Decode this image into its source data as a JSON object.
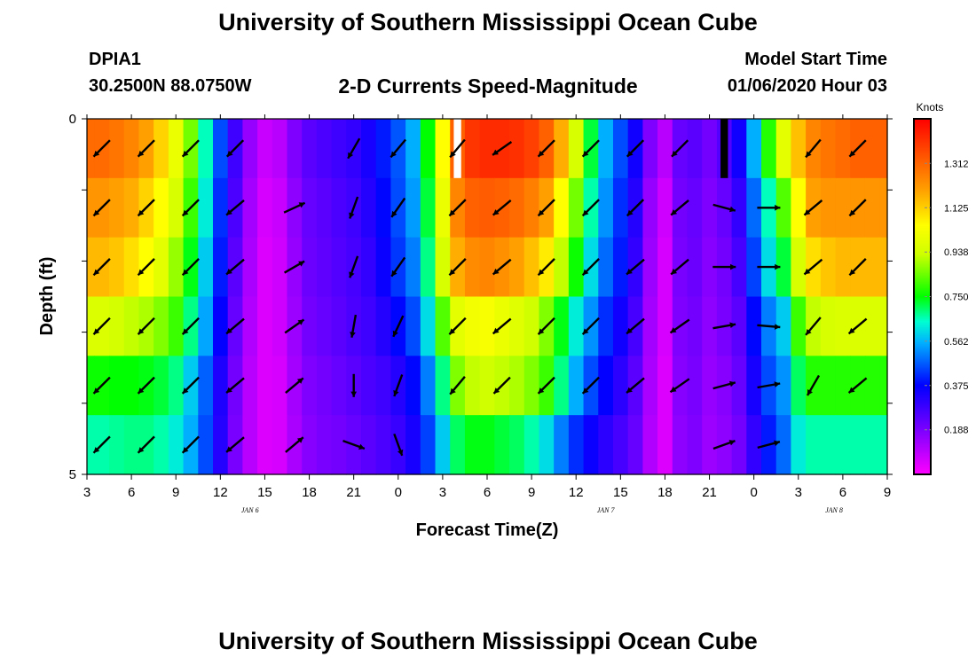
{
  "header": {
    "title_top": "University of Southern Mississippi Ocean Cube",
    "title_bottom": "University of Southern Mississippi Ocean Cube",
    "station": "DPIA1",
    "coords": "30.2500N 88.0750W",
    "subtitle": "2-D Currents Speed-Magnitude",
    "model_start_label": "Model Start Time",
    "model_start_value": "01/06/2020 Hour 03"
  },
  "chart_data": {
    "type": "heatmap",
    "xlabel": "Forecast Time(Z)",
    "ylabel": "Depth (ft)",
    "x_ticks": [
      "3",
      "6",
      "9",
      "12",
      "15",
      "18",
      "21",
      "0",
      "3",
      "6",
      "9",
      "12",
      "15",
      "18",
      "21",
      "0",
      "3",
      "6",
      "9"
    ],
    "x_range_hours": [
      3,
      57
    ],
    "y_ticks": [
      "0",
      "5"
    ],
    "y_range": [
      0,
      5
    ],
    "date_labels": [
      {
        "text": "JAN 6",
        "hour": 14
      },
      {
        "text": "JAN 7",
        "hour": 38
      },
      {
        "text": "JAN 8",
        "hour": 62
      }
    ],
    "colorbar": {
      "unit": "Knots",
      "min": 0.0,
      "max": 1.5,
      "tick_labels": [
        "1.312",
        "1.125",
        "0.938",
        "0.750",
        "0.562",
        "0.375",
        "0.188"
      ],
      "tick_values": [
        1.312,
        1.125,
        0.938,
        0.75,
        0.562,
        0.375,
        0.188
      ]
    },
    "speed_grid": {
      "hours": [
        3,
        4,
        5,
        6,
        7,
        8,
        9,
        10,
        11,
        12,
        13,
        14,
        15,
        16,
        17,
        18,
        19,
        20,
        21,
        22,
        23,
        24,
        25,
        26,
        27,
        28,
        29,
        30,
        31,
        32,
        33,
        34,
        35,
        36,
        37,
        38,
        39,
        40,
        41,
        42,
        43,
        44,
        45,
        46,
        47,
        48,
        49,
        50,
        51,
        52,
        53,
        54,
        55,
        56,
        57
      ],
      "depth_rows": [
        [
          1.3,
          1.3,
          1.28,
          1.25,
          1.2,
          1.12,
          1.0,
          0.85,
          0.65,
          0.45,
          0.28,
          0.15,
          0.08,
          0.1,
          0.18,
          0.24,
          0.26,
          0.28,
          0.3,
          0.34,
          0.4,
          0.46,
          0.55,
          0.75,
          1.05,
          1.32,
          1.4,
          1.42,
          1.42,
          1.41,
          1.38,
          1.32,
          1.18,
          0.95,
          0.72,
          0.55,
          0.45,
          0.35,
          0.18,
          0.1,
          0.22,
          0.24,
          0.2,
          0.25,
          0.35,
          0.55,
          0.78,
          0.98,
          1.15,
          1.25,
          1.28,
          1.3,
          1.32,
          1.32,
          1.32
        ],
        [
          1.22,
          1.22,
          1.2,
          1.18,
          1.12,
          1.05,
          0.95,
          0.8,
          0.62,
          0.42,
          0.26,
          0.13,
          0.06,
          0.08,
          0.16,
          0.22,
          0.24,
          0.26,
          0.28,
          0.32,
          0.38,
          0.45,
          0.53,
          0.72,
          1.0,
          1.25,
          1.32,
          1.33,
          1.32,
          1.3,
          1.26,
          1.2,
          1.05,
          0.85,
          0.66,
          0.52,
          0.42,
          0.32,
          0.15,
          0.07,
          0.2,
          0.22,
          0.18,
          0.22,
          0.3,
          0.48,
          0.65,
          0.82,
          1.05,
          1.2,
          1.22,
          1.22,
          1.22,
          1.22,
          1.22
        ],
        [
          1.16,
          1.16,
          1.14,
          1.1,
          1.05,
          0.98,
          0.88,
          0.74,
          0.58,
          0.4,
          0.24,
          0.12,
          0.05,
          0.07,
          0.15,
          0.21,
          0.23,
          0.25,
          0.27,
          0.3,
          0.36,
          0.43,
          0.5,
          0.68,
          0.95,
          1.18,
          1.24,
          1.25,
          1.23,
          1.2,
          1.15,
          1.08,
          0.92,
          0.76,
          0.6,
          0.48,
          0.4,
          0.3,
          0.14,
          0.06,
          0.19,
          0.21,
          0.17,
          0.2,
          0.27,
          0.44,
          0.6,
          0.72,
          0.95,
          1.1,
          1.14,
          1.16,
          1.16,
          1.16,
          1.16
        ],
        [
          0.96,
          0.96,
          0.94,
          0.92,
          0.9,
          0.86,
          0.8,
          0.68,
          0.54,
          0.37,
          0.22,
          0.11,
          0.05,
          0.07,
          0.14,
          0.2,
          0.22,
          0.24,
          0.26,
          0.28,
          0.32,
          0.38,
          0.45,
          0.6,
          0.82,
          0.98,
          1.02,
          1.03,
          1.0,
          0.97,
          0.93,
          0.86,
          0.74,
          0.62,
          0.52,
          0.42,
          0.35,
          0.27,
          0.13,
          0.06,
          0.18,
          0.2,
          0.16,
          0.19,
          0.24,
          0.38,
          0.5,
          0.58,
          0.8,
          0.92,
          0.95,
          0.96,
          0.96,
          0.96,
          0.96
        ],
        [
          0.76,
          0.76,
          0.75,
          0.75,
          0.74,
          0.72,
          0.68,
          0.58,
          0.47,
          0.33,
          0.2,
          0.1,
          0.05,
          0.06,
          0.13,
          0.18,
          0.2,
          0.22,
          0.24,
          0.26,
          0.28,
          0.32,
          0.38,
          0.5,
          0.68,
          0.86,
          0.92,
          0.93,
          0.92,
          0.9,
          0.86,
          0.8,
          0.68,
          0.55,
          0.45,
          0.37,
          0.31,
          0.24,
          0.12,
          0.05,
          0.17,
          0.19,
          0.15,
          0.17,
          0.22,
          0.34,
          0.45,
          0.52,
          0.7,
          0.78,
          0.78,
          0.78,
          0.78,
          0.78,
          0.78
        ],
        [
          0.66,
          0.66,
          0.67,
          0.68,
          0.68,
          0.66,
          0.62,
          0.55,
          0.45,
          0.32,
          0.19,
          0.1,
          0.05,
          0.06,
          0.12,
          0.17,
          0.19,
          0.2,
          0.22,
          0.24,
          0.26,
          0.29,
          0.34,
          0.44,
          0.58,
          0.7,
          0.74,
          0.74,
          0.72,
          0.7,
          0.66,
          0.6,
          0.5,
          0.42,
          0.36,
          0.31,
          0.27,
          0.22,
          0.11,
          0.05,
          0.16,
          0.18,
          0.14,
          0.16,
          0.2,
          0.3,
          0.4,
          0.48,
          0.62,
          0.66,
          0.66,
          0.66,
          0.66,
          0.66,
          0.66
        ]
      ]
    },
    "vectors": {
      "hours": [
        4,
        7,
        10,
        13,
        17,
        21,
        24,
        28,
        31,
        34,
        37,
        40,
        43,
        46,
        49,
        52,
        55
      ],
      "depth_rows": [
        [
          135,
          135,
          135,
          135,
          null,
          120,
          130,
          130,
          145,
          135,
          135,
          135,
          135,
          null,
          null,
          130,
          135
        ],
        [
          135,
          135,
          135,
          140,
          -25,
          110,
          125,
          135,
          140,
          135,
          135,
          135,
          140,
          15,
          0,
          140,
          135
        ],
        [
          135,
          135,
          135,
          140,
          -30,
          110,
          125,
          135,
          140,
          135,
          135,
          140,
          140,
          0,
          0,
          140,
          135
        ],
        [
          135,
          135,
          135,
          140,
          -35,
          100,
          115,
          135,
          140,
          135,
          135,
          140,
          145,
          -10,
          5,
          130,
          140
        ],
        [
          135,
          135,
          135,
          140,
          -40,
          90,
          110,
          130,
          135,
          135,
          135,
          140,
          145,
          -15,
          -10,
          120,
          140
        ],
        [
          135,
          135,
          135,
          140,
          -40,
          20,
          70,
          null,
          null,
          null,
          null,
          null,
          null,
          -20,
          -15,
          null,
          null
        ]
      ]
    },
    "missing_cells": [
      {
        "hour": 28,
        "row": 0,
        "color": "white"
      },
      {
        "hour": 46,
        "row": 0,
        "color": "black"
      }
    ]
  }
}
